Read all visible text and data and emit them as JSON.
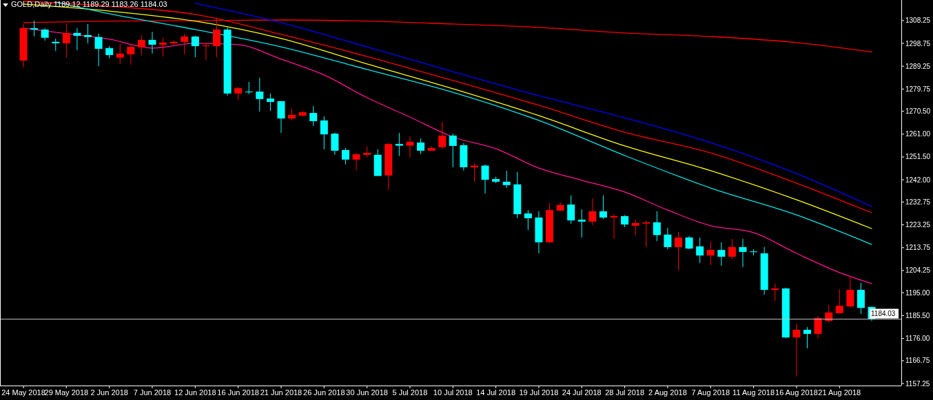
{
  "chart_data": {
    "type": "candlestick",
    "title": "GOLD,Daily  1189.12 1189.29 1183.26 1184.03",
    "categories": [
      "24 May 2018",
      null,
      null,
      null,
      "29 May 2018",
      null,
      null,
      null,
      "2 Jun 2018",
      null,
      null,
      null,
      "7 Jun 2018",
      null,
      null,
      null,
      "12 Jun 2018",
      null,
      null,
      null,
      "16 Jun 2018",
      null,
      null,
      null,
      "21 Jun 2018",
      null,
      null,
      null,
      "26 Jun 2018",
      null,
      null,
      null,
      "30 Jun 2018",
      null,
      null,
      null,
      "5 Jul 2018",
      null,
      null,
      null,
      "10 Jul 2018",
      null,
      null,
      null,
      "14 Jul 2018",
      null,
      null,
      null,
      "19 Jul 2018",
      null,
      null,
      null,
      "24 Jul 2018",
      null,
      null,
      null,
      "28 Jul 2018",
      null,
      null,
      null,
      "2 Aug 2018",
      null,
      null,
      null,
      "7 Aug 2018",
      null,
      null,
      null,
      "11 Aug 2018",
      null,
      null,
      null,
      "16 Aug 2018",
      null,
      null,
      null,
      "21 Aug 2018",
      null,
      null,
      null
    ],
    "ohlc": [
      [
        1291.6,
        1306.8,
        1288.8,
        1305.1
      ],
      [
        1305.1,
        1308.2,
        1301.6,
        1304.5
      ],
      [
        1304.5,
        1305.1,
        1299.9,
        1301.1
      ],
      [
        1299.4,
        1300.8,
        1295.6,
        1298.8
      ],
      [
        1298.8,
        1307.1,
        1292.8,
        1303.1
      ],
      [
        1303.1,
        1305.1,
        1295.9,
        1301.9
      ],
      [
        1302.2,
        1306.8,
        1298.8,
        1301.4
      ],
      [
        1301.4,
        1302.8,
        1289.3,
        1296.5
      ],
      [
        1296.8,
        1297.6,
        1292.5,
        1293.9
      ],
      [
        1292.8,
        1298.5,
        1290.2,
        1294.5
      ],
      [
        1294.2,
        1297.9,
        1289.9,
        1297.3
      ],
      [
        1297.1,
        1302.2,
        1293.9,
        1300.2
      ],
      [
        1300.2,
        1303.6,
        1294.5,
        1298.2
      ],
      [
        1298.2,
        1301.1,
        1293.3,
        1299.1
      ],
      [
        1298.8,
        1299.9,
        1298.5,
        1299.4
      ],
      [
        1299.4,
        1302.8,
        1294.2,
        1301.6
      ],
      [
        1301.6,
        1301.9,
        1293.0,
        1297.6
      ],
      [
        1297.6,
        1299.1,
        1291.9,
        1297.9
      ],
      [
        1297.6,
        1309.4,
        1293.0,
        1304.5
      ],
      [
        1304.5,
        1305.4,
        1277.0,
        1277.9
      ],
      [
        1277.9,
        1280.7,
        1275.3,
        1280.1
      ],
      [
        1278.7,
        1282.7,
        1277.6,
        1278.4
      ],
      [
        1278.7,
        1284.4,
        1270.4,
        1275.6
      ],
      [
        1275.8,
        1277.9,
        1270.7,
        1274.4
      ],
      [
        1274.7,
        1274.7,
        1261.5,
        1267.5
      ],
      [
        1267.5,
        1271.6,
        1266.7,
        1269.0
      ],
      [
        1268.7,
        1270.7,
        1268.4,
        1270.1
      ],
      [
        1269.8,
        1272.7,
        1264.4,
        1266.4
      ],
      [
        1266.7,
        1268.4,
        1254.7,
        1260.9
      ],
      [
        1261.2,
        1261.6,
        1252.4,
        1254.1
      ],
      [
        1254.4,
        1255.2,
        1248.4,
        1250.4
      ],
      [
        1250.4,
        1253.2,
        1245.9,
        1252.6
      ],
      [
        1252.4,
        1255.8,
        1251.3,
        1253.2
      ],
      [
        1252.4,
        1254.7,
        1243.6,
        1243.6
      ],
      [
        1243.8,
        1257.3,
        1237.8,
        1256.9
      ],
      [
        1256.9,
        1261.5,
        1251.9,
        1256.2
      ],
      [
        1256.2,
        1260.1,
        1251.3,
        1257.8
      ],
      [
        1257.5,
        1259.2,
        1252.8,
        1254.1
      ],
      [
        1254.1,
        1256.1,
        1254.1,
        1255.2
      ],
      [
        1255.6,
        1266.1,
        1254.7,
        1260.4
      ],
      [
        1260.4,
        1261.2,
        1247.2,
        1256.1
      ],
      [
        1256.4,
        1257.3,
        1245.8,
        1247.2
      ],
      [
        1247.2,
        1248.9,
        1241.2,
        1247.9
      ],
      [
        1247.9,
        1248.4,
        1236.3,
        1242.0
      ],
      [
        1242.3,
        1243.3,
        1240.6,
        1241.2
      ],
      [
        1241.2,
        1245.8,
        1238.6,
        1239.8
      ],
      [
        1240.1,
        1245.2,
        1226.0,
        1227.7
      ],
      [
        1228.0,
        1229.4,
        1221.1,
        1226.0
      ],
      [
        1226.3,
        1228.9,
        1211.4,
        1216.0
      ],
      [
        1216.0,
        1232.3,
        1215.7,
        1229.4
      ],
      [
        1229.2,
        1232.6,
        1228.9,
        1231.5
      ],
      [
        1231.7,
        1235.5,
        1223.7,
        1225.1
      ],
      [
        1225.4,
        1229.7,
        1218.0,
        1224.6
      ],
      [
        1224.6,
        1234.3,
        1223.1,
        1228.9
      ],
      [
        1228.9,
        1235.5,
        1225.7,
        1226.3
      ],
      [
        1226.3,
        1227.7,
        1217.4,
        1226.9
      ],
      [
        1226.9,
        1227.3,
        1222.3,
        1223.4
      ],
      [
        1222.9,
        1225.4,
        1218.8,
        1224.0
      ],
      [
        1223.8,
        1225.1,
        1214.0,
        1224.3
      ],
      [
        1224.3,
        1228.9,
        1216.5,
        1219.0
      ],
      [
        1219.2,
        1222.0,
        1213.1,
        1214.0
      ],
      [
        1214.0,
        1220.3,
        1204.2,
        1218.0
      ],
      [
        1218.0,
        1218.6,
        1213.1,
        1213.4
      ],
      [
        1214.3,
        1218.0,
        1207.4,
        1210.5
      ],
      [
        1210.5,
        1216.3,
        1206.5,
        1212.8
      ],
      [
        1212.8,
        1216.0,
        1206.2,
        1210.0
      ],
      [
        1210.0,
        1217.4,
        1209.1,
        1214.0
      ],
      [
        1214.0,
        1217.4,
        1205.7,
        1212.0
      ],
      [
        1212.2,
        1213.1,
        1210.5,
        1211.9
      ],
      [
        1211.4,
        1214.0,
        1194.2,
        1196.2
      ],
      [
        1196.2,
        1198.8,
        1191.6,
        1196.8
      ],
      [
        1196.8,
        1197.1,
        1176.1,
        1176.4
      ],
      [
        1176.4,
        1182.2,
        1160.2,
        1179.6
      ],
      [
        1179.6,
        1180.7,
        1171.9,
        1177.9
      ],
      [
        1177.9,
        1185.3,
        1176.1,
        1184.5
      ],
      [
        1183.3,
        1189.9,
        1182.7,
        1186.8
      ],
      [
        1186.5,
        1196.5,
        1186.5,
        1189.6
      ],
      [
        1189.3,
        1201.7,
        1189.0,
        1196.2
      ],
      [
        1196.2,
        1199.1,
        1186.2,
        1188.7
      ],
      [
        1189.12,
        1189.29,
        1183.26,
        1184.03
      ]
    ],
    "colors": [
      "#ff0000",
      "#00ffff",
      "#00ffff",
      "#00ffff",
      "#ff0000",
      "#00ffff",
      "#00ffff",
      "#00ffff",
      "#00ffff",
      "#ff0000",
      "#ff0000",
      "#ff0000",
      "#00ffff",
      "#ff0000",
      "#ff0000",
      "#ff0000",
      "#00ffff",
      "#ff0000",
      "#ff0000",
      "#00ffff",
      "#ff0000",
      "#00ffff",
      "#00ffff",
      "#00ffff",
      "#00ffff",
      "#ff0000",
      "#ff0000",
      "#00ffff",
      "#00ffff",
      "#00ffff",
      "#00ffff",
      "#ff0000",
      "#ff0000",
      "#00ffff",
      "#ff0000",
      "#00ffff",
      "#ff0000",
      "#00ffff",
      "#ff0000",
      "#ff0000",
      "#00ffff",
      "#00ffff",
      "#ff0000",
      "#00ffff",
      "#00ffff",
      "#00ffff",
      "#00ffff",
      "#00ffff",
      "#00ffff",
      "#ff0000",
      "#ff0000",
      "#00ffff",
      "#00ffff",
      "#ff0000",
      "#00ffff",
      "#ff0000",
      "#00ffff",
      "#ff0000",
      "#ff0000",
      "#00ffff",
      "#00ffff",
      "#ff0000",
      "#00ffff",
      "#00ffff",
      "#ff0000",
      "#00ffff",
      "#ff0000",
      "#00ffff",
      "#00ffff",
      "#00ffff",
      "#ff0000",
      "#00ffff",
      "#ff0000",
      "#00ffff",
      "#ff0000",
      "#ff0000",
      "#ff0000",
      "#ff0000",
      "#00ffff",
      "#00ffff"
    ],
    "series": [
      {
        "type": "line",
        "color": "#ff0000",
        "values": [
          1307.4,
          null,
          null,
          null,
          null,
          null,
          null,
          null,
          1308.0,
          null,
          null,
          null,
          null,
          null,
          null,
          null,
          1308.2,
          null,
          null,
          null,
          null,
          null,
          null,
          null,
          1308.5,
          null,
          null,
          null,
          null,
          null,
          null,
          null,
          1308.0,
          null,
          null,
          null,
          null,
          null,
          null,
          null,
          1306.8,
          null,
          null,
          null,
          null,
          null,
          null,
          null,
          1305.4,
          null,
          null,
          null,
          null,
          null,
          null,
          null,
          1303.1,
          null,
          null,
          null,
          null,
          null,
          null,
          null,
          1301.6,
          null,
          null,
          null,
          null,
          null,
          null,
          null,
          1299.1,
          null,
          null,
          null,
          null,
          null,
          null,
          1295.2
        ]
      },
      {
        "type": "line",
        "color": "#0000ff",
        "values": [
          null,
          null,
          null,
          null,
          null,
          null,
          null,
          null,
          null,
          null,
          null,
          null,
          null,
          null,
          null,
          null,
          1315.4,
          null,
          null,
          null,
          null,
          null,
          null,
          null,
          1307.4,
          null,
          null,
          null,
          null,
          null,
          null,
          null,
          1297.3,
          null,
          null,
          null,
          null,
          null,
          null,
          null,
          1287.0,
          null,
          null,
          null,
          null,
          null,
          null,
          null,
          1277.0,
          null,
          null,
          null,
          null,
          null,
          null,
          null,
          1267.8,
          null,
          null,
          null,
          null,
          null,
          null,
          null,
          1257.5,
          null,
          null,
          null,
          null,
          null,
          null,
          null,
          1244.6,
          null,
          null,
          null,
          null,
          null,
          null,
          1230.9
        ]
      },
      {
        "type": "line",
        "color": "#ff0000",
        "values": [
          1316.3,
          null,
          null,
          null,
          null,
          null,
          null,
          null,
          1314.2,
          null,
          null,
          null,
          null,
          null,
          null,
          null,
          1310.8,
          null,
          null,
          null,
          null,
          null,
          null,
          null,
          1302.5,
          null,
          null,
          null,
          null,
          null,
          null,
          null,
          1293.3,
          null,
          null,
          null,
          null,
          null,
          null,
          null,
          1283.3,
          null,
          null,
          null,
          null,
          null,
          null,
          null,
          1273.0,
          null,
          null,
          null,
          null,
          null,
          null,
          null,
          1261.8,
          null,
          null,
          null,
          null,
          null,
          null,
          null,
          1253.2,
          null,
          null,
          null,
          null,
          null,
          null,
          null,
          1240.6,
          null,
          null,
          null,
          null,
          null,
          null,
          1228.3
        ]
      },
      {
        "type": "line",
        "color": "#ffff00",
        "values": [
          1315.1,
          null,
          null,
          null,
          null,
          null,
          null,
          null,
          1312.2,
          null,
          null,
          null,
          null,
          null,
          null,
          null,
          1308.0,
          null,
          null,
          null,
          null,
          null,
          null,
          null,
          1300.8,
          null,
          null,
          null,
          null,
          null,
          null,
          null,
          1290.2,
          null,
          null,
          null,
          null,
          null,
          null,
          null,
          1279.9,
          null,
          null,
          null,
          null,
          null,
          null,
          null,
          1268.7,
          null,
          null,
          null,
          null,
          null,
          null,
          null,
          1256.1,
          null,
          null,
          null,
          null,
          null,
          null,
          null,
          1245.8,
          null,
          null,
          null,
          null,
          null,
          null,
          null,
          1233.7,
          null,
          null,
          null,
          null,
          null,
          null,
          1221.7
        ]
      },
      {
        "type": "line",
        "color": "#00e8e8",
        "values": [
          null,
          null,
          null,
          1316.0,
          null,
          null,
          null,
          null,
          1311.1,
          null,
          null,
          null,
          null,
          null,
          null,
          null,
          1304.5,
          null,
          null,
          null,
          null,
          null,
          null,
          null,
          1297.3,
          null,
          null,
          null,
          null,
          null,
          null,
          null,
          1287.9,
          null,
          null,
          null,
          null,
          null,
          null,
          null,
          1278.4,
          null,
          null,
          null,
          null,
          null,
          null,
          null,
          1266.7,
          null,
          null,
          null,
          null,
          null,
          null,
          null,
          1252.1,
          null,
          null,
          null,
          null,
          null,
          null,
          null,
          1238.6,
          null,
          null,
          null,
          null,
          null,
          null,
          null,
          1227.4,
          null,
          null,
          null,
          null,
          null,
          null,
          1215.1
        ]
      },
      {
        "type": "line",
        "color": "#ff1493",
        "values": [
          1305.1,
          null,
          null,
          null,
          1302.8,
          null,
          null,
          null,
          1300.5,
          null,
          null,
          null,
          1296.8,
          null,
          null,
          null,
          1298.8,
          null,
          null,
          null,
          1298.2,
          null,
          null,
          null,
          1292.2,
          null,
          null,
          null,
          1285.6,
          null,
          null,
          null,
          1276.2,
          null,
          null,
          null,
          1268.1,
          null,
          null,
          null,
          1259.8,
          null,
          null,
          null,
          1254.9,
          null,
          null,
          null,
          1246.9,
          null,
          null,
          null,
          1241.8,
          null,
          null,
          null,
          1236.9,
          null,
          null,
          null,
          1229.4,
          null,
          null,
          null,
          1222.9,
          null,
          null,
          null,
          1220.0,
          null,
          null,
          null,
          1211.4,
          null,
          null,
          null,
          1203.4,
          null,
          null,
          1198.8
        ]
      }
    ],
    "ylim": [
      1156.4,
      1316.8
    ],
    "yticks": [
      1308.25,
      1298.75,
      1289.25,
      1279.75,
      {
        "value": 1270.5,
        "label": "1270.50"
      },
      {
        "value": 1261,
        "label": "1261.00"
      },
      {
        "value": 1251.5,
        "label": "1251.50"
      },
      {
        "value": 1242,
        "label": "1242.00"
      },
      1232.75,
      1223.25,
      1213.75,
      1204.25,
      {
        "value": 1195,
        "label": "1195.00"
      },
      {
        "value": 1185.5,
        "label": "1185.50"
      },
      {
        "value": 1176,
        "label": "1176.00"
      },
      1166.75,
      1157.25
    ],
    "ref_lines": [
      {
        "axis": "y",
        "value": 1184.03,
        "label": "1184.03",
        "color": "#c0c0c0"
      }
    ]
  }
}
